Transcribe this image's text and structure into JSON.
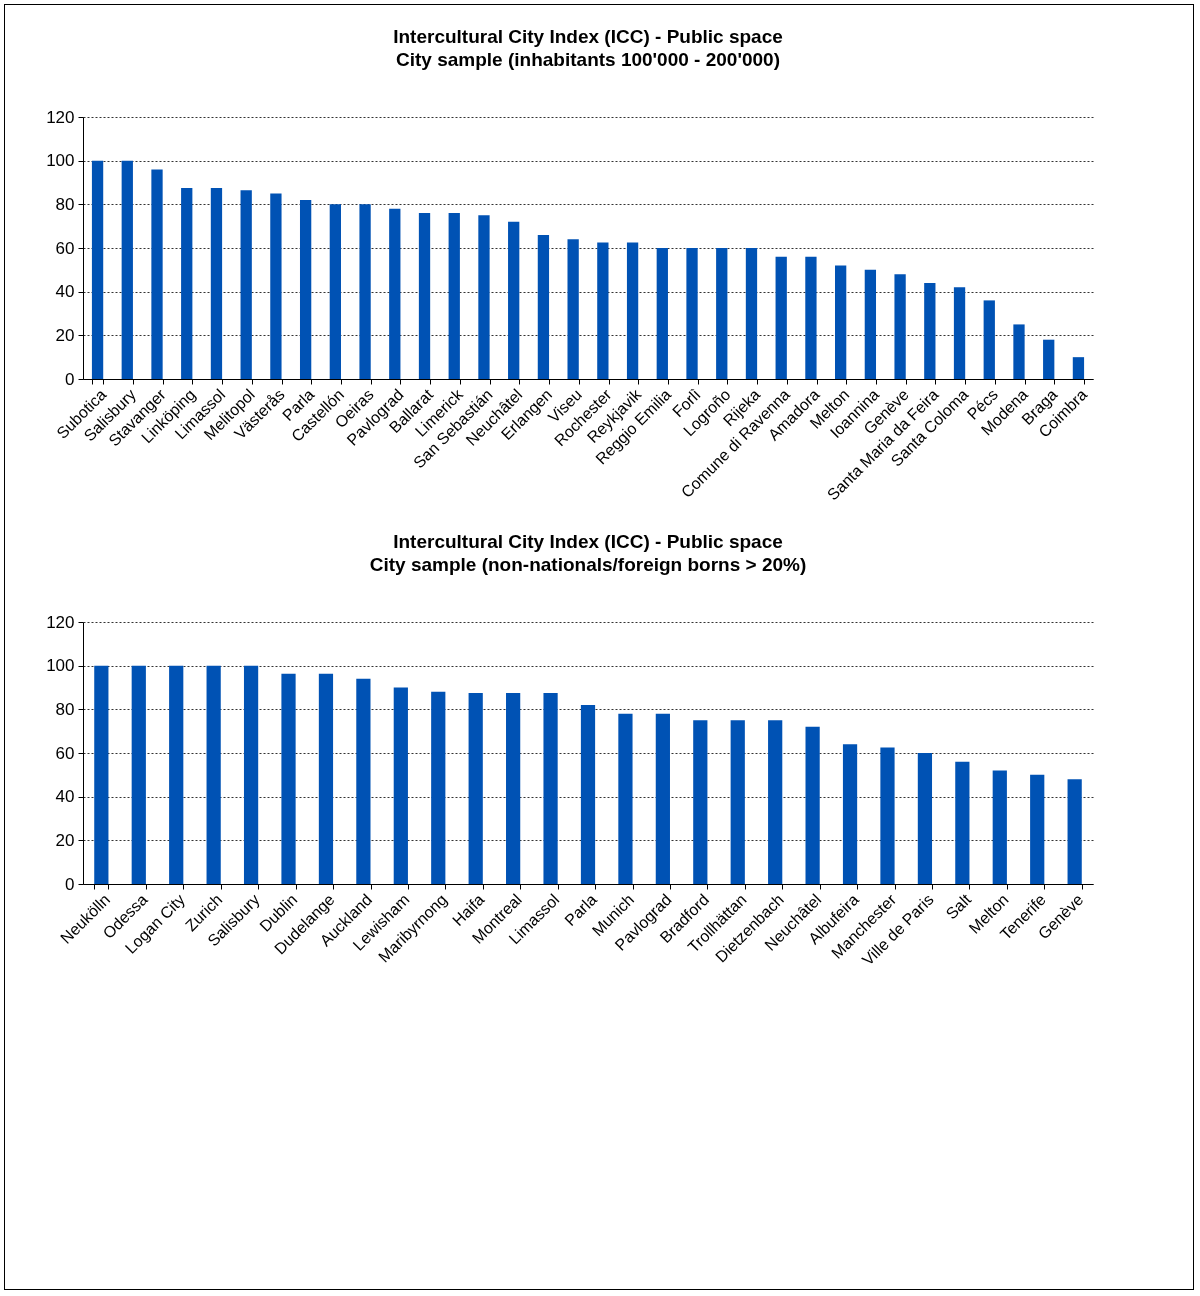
{
  "chart_data": [
    {
      "type": "bar",
      "title": "Intercultural City Index (ICC) - Public space",
      "subtitle": "City sample (inhabitants 100'000 - 200'000)",
      "categories": [
        "Subotica",
        "Salisbury",
        "Stavanger",
        "Linköping",
        "Limassol",
        "Melitopol",
        "Västerås",
        "Parla",
        "Castellón",
        "Oeiras",
        "Pavlograd",
        "Ballarat",
        "Limerick",
        "San Sebastián",
        "Neuchâtel",
        "Erlangen",
        "Viseu",
        "Rochester",
        "Reykjavik",
        "Reggio Emilia",
        "Forlì",
        "Logroño",
        "Rijeka",
        "Comune di Ravenna",
        "Amadora",
        "Melton",
        "Ioannina",
        "Genève",
        "Santa Maria da Feira",
        "Santa Coloma",
        "Pécs",
        "Modena",
        "Braga",
        "Coimbra"
      ],
      "values": [
        100,
        100,
        96,
        87.5,
        87.5,
        86.5,
        85,
        82,
        80,
        80,
        78,
        76,
        76,
        75,
        72,
        66,
        64,
        62.5,
        62.5,
        60,
        60,
        60,
        60,
        56,
        56,
        52,
        50,
        48,
        44,
        42,
        36,
        25,
        18,
        10
      ],
      "color": "#0052b4",
      "ylim": [
        0,
        120
      ],
      "yticks": [
        0,
        20,
        40,
        60,
        80,
        100,
        120
      ],
      "grid": "y"
    },
    {
      "type": "bar",
      "title": "Intercultural City Index (ICC) - Public space",
      "subtitle": "City sample (non-nationals/foreign borns > 20%)",
      "categories": [
        "Neukölln",
        "Odessa",
        "Logan City",
        "Zurich",
        "Salisbury",
        "Dublin",
        "Dudelange",
        "Auckland",
        "Lewisham",
        "Maribyrnong",
        "Haifa",
        "Montreal",
        "Limassol",
        "Parla",
        "Munich",
        "Pavlograd",
        "Bradford",
        "Trollhättan",
        "Dietzenbach",
        "Neuchâtel",
        "Albufeira",
        "Manchester",
        "Ville de Paris",
        "Salt",
        "Melton",
        "Tenerife",
        "Genève"
      ],
      "values": [
        100,
        100,
        100,
        100,
        100,
        96.3,
        96.3,
        94,
        90,
        88,
        87.5,
        87.5,
        87.5,
        82,
        78,
        78,
        75,
        75,
        75,
        72,
        64,
        62.5,
        60,
        56,
        52,
        50,
        48
      ],
      "color": "#0052b4",
      "ylim": [
        0,
        120
      ],
      "yticks": [
        0,
        20,
        40,
        60,
        80,
        100,
        120
      ],
      "grid": "y"
    }
  ]
}
